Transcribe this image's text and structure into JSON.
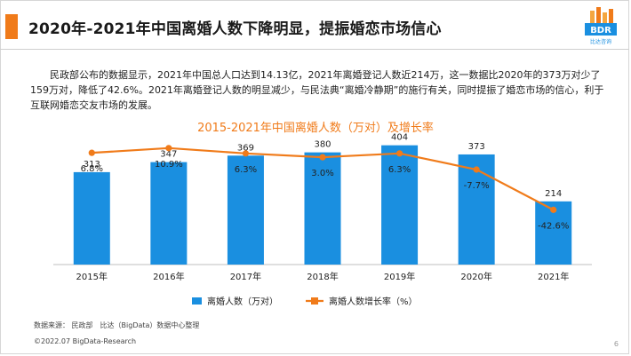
{
  "header": {
    "title": "2020年-2021年中国离婚人数下降明显，提振婚恋市场信心",
    "logo_text": "BDR",
    "logo_subtext": "比达咨询"
  },
  "body_text": "民政部公布的数据显示，2021年中国总人口达到14.13亿，2021年离婚登记人数近214万，这一数据比2020年的373万对少了159万对，降低了42.6%。2021年离婚登记人数的明显减少，与民法典“离婚冷静期”的施行有关，同时提振了婚恋市场的信心，利于互联网婚恋交友市场的发展。",
  "chart_data": {
    "type": "bar",
    "title": "2015-2021年中国离婚人数（万对）及增长率",
    "categories": [
      "2015年",
      "2016年",
      "2017年",
      "2018年",
      "2019年",
      "2020年",
      "2021年"
    ],
    "series": [
      {
        "name": "离婚人数（万对）",
        "type": "bar",
        "values": [
          313,
          347,
          369,
          380,
          404,
          373,
          214
        ],
        "labels": [
          "313",
          "347",
          "369",
          "380",
          "404",
          "373",
          "214"
        ]
      },
      {
        "name": "离婚人数增长率（%）",
        "type": "line",
        "values": [
          6.8,
          10.9,
          6.3,
          3.0,
          6.3,
          -7.7,
          -42.6
        ],
        "labels": [
          "6.8%",
          "10.9%",
          "6.3%",
          "3.0%",
          "6.3%",
          "-7.7%",
          "-42.6%"
        ]
      }
    ],
    "bar_ylim": [
      0,
      430
    ],
    "line_ylim": [
      -90,
      20
    ],
    "legend_position": "bottom",
    "grid": false
  },
  "colors": {
    "bar": "#1a8fe0",
    "line": "#f07b1a",
    "accent": "#f07b1a"
  },
  "footer": {
    "source": "数据来源： 民政部　比达（BigData）数据中心整理",
    "copyright": "©2022.07 BigData-Research",
    "page_number": "6"
  }
}
